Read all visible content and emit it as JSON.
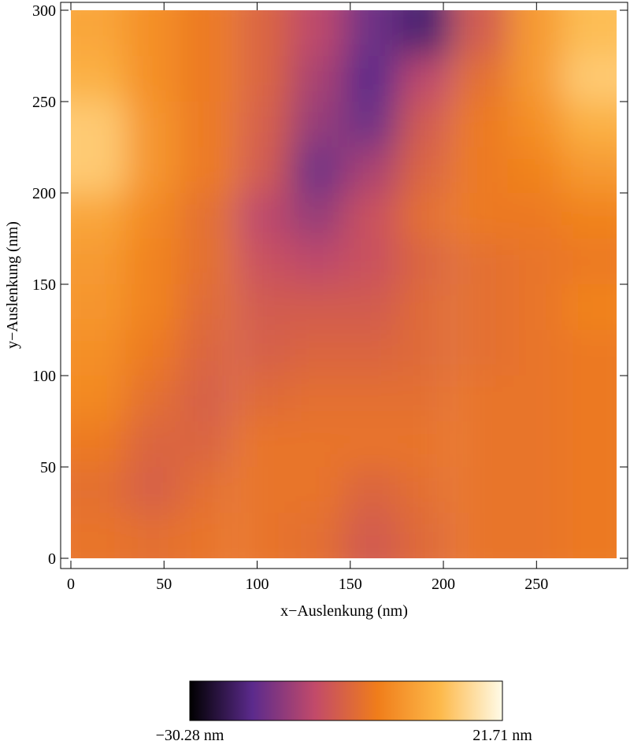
{
  "chart_data": {
    "type": "heatmap",
    "x_label": "x−Auslenkung (nm)",
    "y_label": "y−Auslenkung (nm)",
    "xlim": [
      0,
      293
    ],
    "ylim": [
      0,
      300
    ],
    "xticks": [
      0,
      50,
      100,
      150,
      200,
      250
    ],
    "yticks": [
      0,
      50,
      100,
      150,
      200,
      250,
      300
    ],
    "x": [
      15,
      44,
      73,
      103,
      132,
      161,
      190,
      220,
      249,
      278
    ],
    "y": [
      287.5,
      262.5,
      237.5,
      212.5,
      187.5,
      162.5,
      137.5,
      112.5,
      87.5,
      62.5,
      37.5,
      12.5
    ],
    "z": [
      [
        8,
        4,
        0,
        -4,
        -10,
        -18,
        -22,
        -6,
        6,
        12
      ],
      [
        10,
        4,
        0,
        -4,
        -12,
        -20,
        -10,
        -2,
        6,
        14
      ],
      [
        14,
        5,
        0,
        -5,
        -14,
        -18,
        -6,
        0,
        4,
        10
      ],
      [
        14,
        5,
        0,
        -6,
        -18,
        -12,
        -4,
        0,
        2,
        6
      ],
      [
        8,
        3,
        -2,
        -10,
        -14,
        -8,
        -2,
        0,
        0,
        2
      ],
      [
        6,
        2,
        -2,
        -8,
        -10,
        -8,
        -4,
        -2,
        -1,
        0
      ],
      [
        5,
        2,
        -3,
        -6,
        -6,
        -6,
        -3,
        -2,
        -1,
        2
      ],
      [
        4,
        0,
        -4,
        -5,
        -4,
        -4,
        -3,
        -2,
        -1,
        0
      ],
      [
        3,
        -2,
        -5,
        -3,
        -2,
        -2,
        -2,
        -1,
        -1,
        0
      ],
      [
        0,
        -4,
        -4,
        -1,
        -1,
        -1,
        -1,
        -1,
        -1,
        0
      ],
      [
        -2,
        -5,
        -2,
        -1,
        -1,
        -4,
        -2,
        -1,
        -1,
        0
      ],
      [
        -1,
        -2,
        -1,
        -1,
        -2,
        -6,
        -3,
        -1,
        -1,
        0
      ]
    ],
    "zlim": [
      -30.28,
      21.71
    ],
    "zticks": [
      {
        "value": -30.28,
        "label": "−30.28 nm"
      },
      {
        "value": 21.71,
        "label": "21.71 nm"
      }
    ],
    "colormap": [
      "#000000",
      "#5b2a8c",
      "#c24a6a",
      "#f07d1a",
      "#fdb94a",
      "#fffbe8"
    ]
  }
}
